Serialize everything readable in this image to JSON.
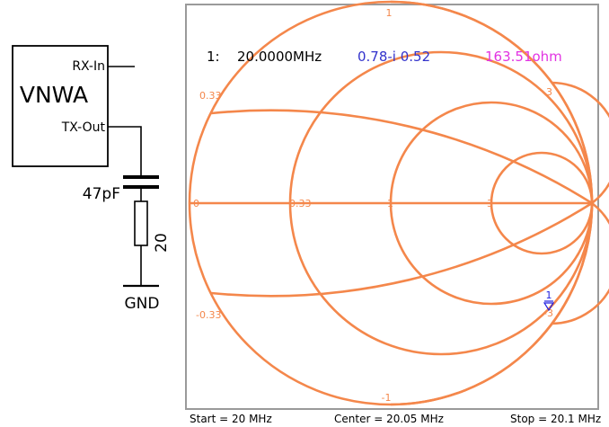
{
  "schematic": {
    "device_name": "VNWA",
    "rx_port_label": "RX-In",
    "tx_port_label": "TX-Out",
    "capacitor_label": "47pF",
    "resistor_label": "20",
    "ground_label": "GND"
  },
  "smith_chart": {
    "top_resistance_label": "1",
    "bottom_resistance_label": "-1",
    "reactance_labels": {
      "upper_left": "0.33",
      "lower_left": "-0.33",
      "upper_right": "3",
      "lower_right": "-3"
    },
    "real_axis_labels": [
      "0",
      "0.33",
      "1",
      "3"
    ],
    "marker_readout": {
      "index": "1:",
      "frequency": "20.0000MHz",
      "reflection": "0.78-i 0.52",
      "impedance": "163.51ohm"
    },
    "marker_label": "1",
    "footer": {
      "start": "Start = 20 MHz",
      "center": "Center = 20.05 MHz",
      "stop": "Stop = 20.1 MHz"
    }
  },
  "colors": {
    "grid": "#F4874B",
    "frequency_text": "#000000",
    "reflection_text": "#3333CC",
    "impedance_text": "#E233E2",
    "marker": "#2020E0",
    "frame": "#9A9A9A"
  },
  "chart_data": {
    "type": "smith",
    "sweep_start_mhz": 20,
    "sweep_center_mhz": 20.05,
    "sweep_stop_mhz": 20.1,
    "marker": {
      "index": 1,
      "frequency_mhz": 20.0,
      "reflection_coefficient": {
        "re": 0.78,
        "im": -0.52
      },
      "impedance_ohm": 163.51
    },
    "constant_resistance_circles": [
      0,
      0.33,
      1,
      3
    ],
    "constant_reactance_arcs": [
      0.33,
      1,
      3,
      -0.33,
      -1,
      -3
    ]
  }
}
